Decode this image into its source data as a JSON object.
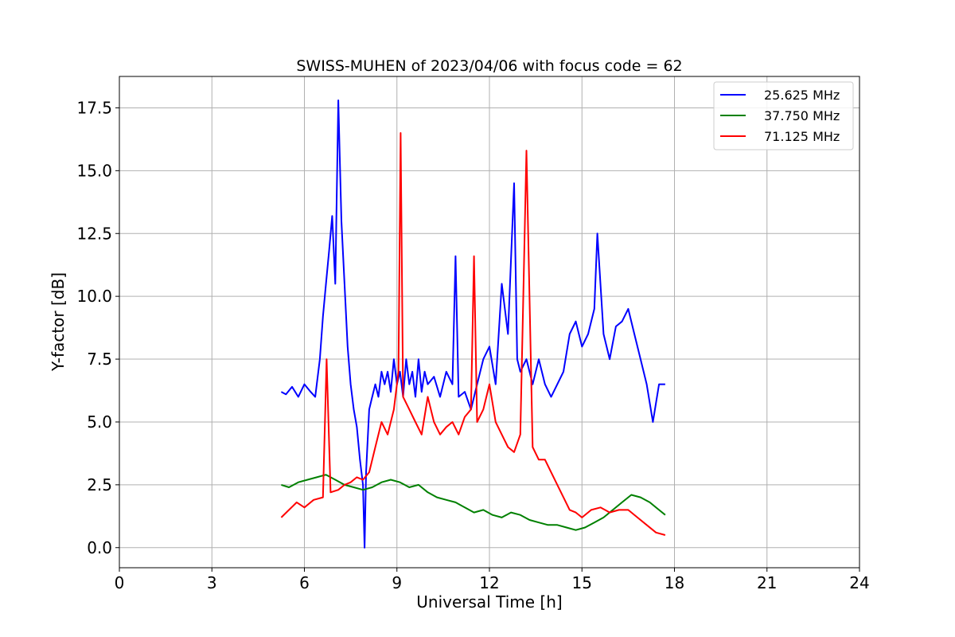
{
  "chart_data": {
    "type": "line",
    "title": "SWISS-MUHEN of 2023/04/06 with focus code = 62",
    "xlabel": "Universal Time [h]",
    "ylabel": "Y-factor [dB]",
    "xlim": [
      0,
      24
    ],
    "ylim": [
      -0.8,
      18.75
    ],
    "xticks": [
      0,
      3,
      6,
      9,
      12,
      15,
      18,
      21,
      24
    ],
    "xtick_labels": [
      "0",
      "3",
      "6",
      "9",
      "12",
      "15",
      "18",
      "21",
      "24"
    ],
    "yticks": [
      0,
      2.5,
      5,
      7.5,
      10,
      12.5,
      15,
      17.5
    ],
    "ytick_labels": [
      "0.0",
      "2.5",
      "5.0",
      "7.5",
      "10.0",
      "12.5",
      "15.0",
      "17.5"
    ],
    "grid": true,
    "legend_position": "top-right",
    "series": [
      {
        "name": "25.625 MHz",
        "color": "#0000ff",
        "x": [
          5.25,
          5.4,
          5.6,
          5.8,
          6.0,
          6.2,
          6.35,
          6.5,
          6.6,
          6.7,
          6.8,
          6.9,
          7.0,
          7.1,
          7.2,
          7.3,
          7.4,
          7.5,
          7.6,
          7.7,
          7.8,
          7.9,
          7.95,
          8.0,
          8.1,
          8.2,
          8.3,
          8.4,
          8.5,
          8.6,
          8.7,
          8.8,
          8.9,
          9.0,
          9.1,
          9.2,
          9.3,
          9.4,
          9.5,
          9.6,
          9.7,
          9.8,
          9.9,
          10.0,
          10.2,
          10.4,
          10.6,
          10.8,
          10.9,
          11.0,
          11.2,
          11.4,
          11.6,
          11.8,
          12.0,
          12.2,
          12.4,
          12.6,
          12.8,
          12.9,
          13.0,
          13.2,
          13.4,
          13.6,
          13.8,
          14.0,
          14.2,
          14.4,
          14.6,
          14.8,
          15.0,
          15.2,
          15.4,
          15.5,
          15.7,
          15.9,
          16.1,
          16.3,
          16.5,
          16.7,
          16.9,
          17.1,
          17.3,
          17.5,
          17.7
        ],
        "y": [
          6.2,
          6.1,
          6.4,
          6.0,
          6.5,
          6.2,
          6.0,
          7.5,
          9.2,
          10.5,
          11.8,
          13.2,
          10.5,
          17.8,
          13.0,
          10.5,
          8.0,
          6.5,
          5.5,
          4.8,
          3.5,
          2.5,
          0.0,
          3.0,
          5.5,
          6.0,
          6.5,
          6.0,
          7.0,
          6.5,
          7.0,
          6.2,
          7.5,
          6.5,
          7.0,
          6.0,
          7.5,
          6.5,
          7.0,
          6.0,
          7.5,
          6.2,
          7.0,
          6.5,
          6.8,
          6.0,
          7.0,
          6.5,
          11.6,
          6.0,
          6.2,
          5.5,
          6.5,
          7.5,
          8.0,
          6.5,
          10.5,
          8.5,
          14.5,
          7.5,
          7.0,
          7.5,
          6.5,
          7.5,
          6.5,
          6.0,
          6.5,
          7.0,
          8.5,
          9.0,
          8.0,
          8.5,
          9.5,
          12.5,
          8.5,
          7.5,
          8.8,
          9.0,
          9.5,
          8.5,
          7.5,
          6.5,
          5.0,
          6.5,
          6.5
        ]
      },
      {
        "name": "37.750 MHz",
        "color": "#008000",
        "x": [
          5.25,
          5.5,
          5.8,
          6.1,
          6.4,
          6.7,
          7.0,
          7.3,
          7.6,
          7.9,
          8.2,
          8.5,
          8.8,
          9.1,
          9.4,
          9.7,
          10.0,
          10.3,
          10.6,
          10.9,
          11.2,
          11.5,
          11.8,
          12.1,
          12.4,
          12.7,
          13.0,
          13.3,
          13.6,
          13.9,
          14.2,
          14.5,
          14.8,
          15.1,
          15.4,
          15.7,
          16.0,
          16.3,
          16.6,
          16.9,
          17.2,
          17.5,
          17.7
        ],
        "y": [
          2.5,
          2.4,
          2.6,
          2.7,
          2.8,
          2.9,
          2.7,
          2.5,
          2.4,
          2.3,
          2.4,
          2.6,
          2.7,
          2.6,
          2.4,
          2.5,
          2.2,
          2.0,
          1.9,
          1.8,
          1.6,
          1.4,
          1.5,
          1.3,
          1.2,
          1.4,
          1.3,
          1.1,
          1.0,
          0.9,
          0.9,
          0.8,
          0.7,
          0.8,
          1.0,
          1.2,
          1.5,
          1.8,
          2.1,
          2.0,
          1.8,
          1.5,
          1.3
        ]
      },
      {
        "name": "71.125 MHz",
        "color": "#ff0000",
        "x": [
          5.25,
          5.5,
          5.75,
          6.0,
          6.3,
          6.6,
          6.72,
          6.85,
          7.1,
          7.3,
          7.5,
          7.7,
          7.9,
          8.1,
          8.3,
          8.5,
          8.7,
          8.9,
          9.05,
          9.12,
          9.2,
          9.4,
          9.6,
          9.8,
          10.0,
          10.2,
          10.4,
          10.6,
          10.8,
          11.0,
          11.2,
          11.4,
          11.5,
          11.6,
          11.8,
          12.0,
          12.2,
          12.4,
          12.6,
          12.8,
          13.0,
          13.2,
          13.4,
          13.6,
          13.8,
          14.0,
          14.2,
          14.4,
          14.6,
          14.8,
          15.0,
          15.3,
          15.6,
          15.9,
          16.2,
          16.5,
          16.8,
          17.1,
          17.4,
          17.7
        ],
        "y": [
          1.2,
          1.5,
          1.8,
          1.6,
          1.9,
          2.0,
          7.5,
          2.2,
          2.3,
          2.5,
          2.6,
          2.8,
          2.7,
          3.0,
          4.0,
          5.0,
          4.5,
          5.5,
          7.0,
          16.5,
          6.0,
          5.5,
          5.0,
          4.5,
          6.0,
          5.0,
          4.5,
          4.8,
          5.0,
          4.5,
          5.2,
          5.5,
          11.6,
          5.0,
          5.5,
          6.5,
          5.0,
          4.5,
          4.0,
          3.8,
          4.5,
          15.8,
          4.0,
          3.5,
          3.5,
          3.0,
          2.5,
          2.0,
          1.5,
          1.4,
          1.2,
          1.5,
          1.6,
          1.4,
          1.5,
          1.5,
          1.2,
          0.9,
          0.6,
          0.5
        ]
      }
    ]
  }
}
